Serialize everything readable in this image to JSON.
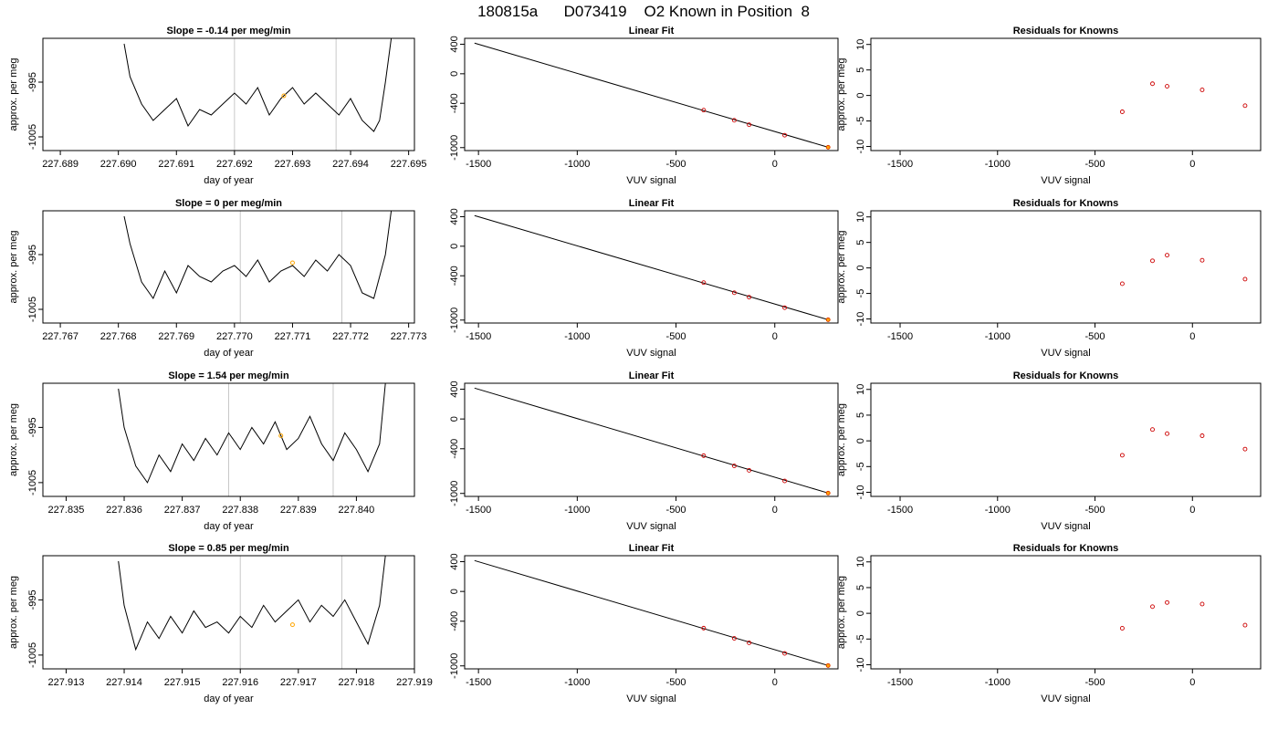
{
  "title": "180815a      D073419    O2 Known in Position  8",
  "colors": {
    "line": "#000000",
    "gridline": "#c8c8c8",
    "highlight": "#ffa500",
    "residual": "#cd0000",
    "fit_points": "#cd0000"
  },
  "chart_data": [
    {
      "type": "line",
      "row": 0,
      "col": 0,
      "title": "Slope =  -0.14  per meg/min",
      "xlabel": "day of year",
      "ylabel": "approx. per meg",
      "xlim": [
        227.6887,
        227.6951
      ],
      "xticks": [
        227.689,
        227.69,
        227.691,
        227.692,
        227.693,
        227.694,
        227.695
      ],
      "xtick_labels": [
        "227.689",
        "227.690",
        "227.691",
        "227.692",
        "227.693",
        "227.694",
        "227.695"
      ],
      "ylim": [
        -1007.5,
        -987
      ],
      "yticks": [
        -995,
        -1005
      ],
      "ytick_labels": [
        "-995",
        "-1005"
      ],
      "vlines": [
        227.692,
        227.69375
      ],
      "series": [
        {
          "x": [
            227.6901,
            227.6902,
            227.6904,
            227.6906,
            227.6908,
            227.691,
            227.6912,
            227.6914,
            227.6916,
            227.6918,
            227.692,
            227.6922,
            227.6924,
            227.6926,
            227.6928,
            227.693,
            227.6932,
            227.6934,
            227.6936,
            227.6938,
            227.694,
            227.6942,
            227.6944,
            227.6945,
            227.6946,
            227.6947
          ],
          "y": [
            -988,
            -994,
            -999,
            -1002,
            -1000,
            -998,
            -1003,
            -1000,
            -1001,
            -999,
            -997,
            -999,
            -996,
            -1001,
            -998,
            -996,
            -999,
            -997,
            -999,
            -1001,
            -998,
            -1002,
            -1004,
            -1002,
            -995,
            -987
          ]
        }
      ],
      "highlight": {
        "x": 227.69285,
        "y": -997.5
      }
    },
    {
      "type": "scatter",
      "row": 0,
      "col": 1,
      "title": "Linear Fit",
      "xlabel": "VUV signal",
      "ylabel": "",
      "xlim": [
        -1570,
        320
      ],
      "xticks": [
        -1500,
        -1000,
        -500,
        0
      ],
      "xtick_labels": [
        "-1500",
        "-1000",
        "-500",
        "0"
      ],
      "ylim": [
        -1040,
        480
      ],
      "yticks": [
        400,
        0,
        -400,
        -1000
      ],
      "ytick_labels": [
        "400",
        "0",
        "-400",
        "-1000"
      ],
      "fit_line": {
        "x": [
          -1520,
          270
        ],
        "y": [
          415,
          -995
        ]
      },
      "x": [
        -360,
        -205,
        -130,
        50
      ],
      "y": [
        -493,
        -630,
        -690,
        -832
      ],
      "highlight": {
        "x": 270,
        "y": -995
      }
    },
    {
      "type": "scatter",
      "row": 0,
      "col": 2,
      "title": "Residuals for Knowns",
      "xlabel": "VUV signal",
      "ylabel": "approx. per meg",
      "xlim": [
        -1650,
        350
      ],
      "xticks": [
        -1500,
        -1000,
        -500,
        0
      ],
      "xtick_labels": [
        "-1500",
        "-1000",
        "-500",
        "0"
      ],
      "ylim": [
        -10.8,
        11.2
      ],
      "yticks": [
        10,
        5,
        0,
        -5,
        -10
      ],
      "ytick_labels": [
        "10",
        "5",
        "0",
        "-5",
        "-10"
      ],
      "x": [
        -360,
        -205,
        -130,
        50,
        270
      ],
      "y": [
        -3.2,
        2.3,
        1.8,
        1.1,
        -2.0
      ]
    },
    {
      "type": "line",
      "row": 1,
      "col": 0,
      "title": "Slope =  0  per meg/min",
      "xlabel": "day of year",
      "ylabel": "approx. per meg",
      "xlim": [
        227.7667,
        227.7731
      ],
      "xticks": [
        227.767,
        227.768,
        227.769,
        227.77,
        227.771,
        227.772,
        227.773
      ],
      "xtick_labels": [
        "227.767",
        "227.768",
        "227.769",
        "227.770",
        "227.771",
        "227.772",
        "227.773"
      ],
      "ylim": [
        -1007.5,
        -987
      ],
      "yticks": [
        -995,
        -1005
      ],
      "ytick_labels": [
        "-995",
        "-1005"
      ],
      "vlines": [
        227.7701,
        227.77185
      ],
      "series": [
        {
          "x": [
            227.7681,
            227.7682,
            227.7684,
            227.7686,
            227.7688,
            227.769,
            227.7692,
            227.7694,
            227.7696,
            227.7698,
            227.77,
            227.7702,
            227.7704,
            227.7706,
            227.7708,
            227.771,
            227.7712,
            227.7714,
            227.7716,
            227.7718,
            227.772,
            227.7722,
            227.7724,
            227.7726,
            227.7727
          ],
          "y": [
            -988,
            -993,
            -1000,
            -1003,
            -998,
            -1002,
            -997,
            -999,
            -1000,
            -998,
            -997,
            -999,
            -996,
            -1000,
            -998,
            -997,
            -999,
            -996,
            -998,
            -995,
            -997,
            -1002,
            -1003,
            -995,
            -987
          ]
        }
      ],
      "highlight": {
        "x": 227.771,
        "y": -996.5
      }
    },
    {
      "type": "scatter",
      "row": 1,
      "col": 1,
      "title": "Linear Fit",
      "xlabel": "VUV signal",
      "ylabel": "",
      "xlim": [
        -1570,
        320
      ],
      "xticks": [
        -1500,
        -1000,
        -500,
        0
      ],
      "xtick_labels": [
        "-1500",
        "-1000",
        "-500",
        "0"
      ],
      "ylim": [
        -1040,
        480
      ],
      "yticks": [
        400,
        0,
        -400,
        -1000
      ],
      "ytick_labels": [
        "400",
        "0",
        "-400",
        "-1000"
      ],
      "fit_line": {
        "x": [
          -1520,
          270
        ],
        "y": [
          415,
          -995
        ]
      },
      "x": [
        -360,
        -205,
        -130,
        50
      ],
      "y": [
        -493,
        -630,
        -690,
        -832
      ],
      "highlight": {
        "x": 270,
        "y": -995
      }
    },
    {
      "type": "scatter",
      "row": 1,
      "col": 2,
      "title": "Residuals for Knowns",
      "xlabel": "VUV signal",
      "ylabel": "approx. per meg",
      "xlim": [
        -1650,
        350
      ],
      "xticks": [
        -1500,
        -1000,
        -500,
        0
      ],
      "xtick_labels": [
        "-1500",
        "-1000",
        "-500",
        "0"
      ],
      "ylim": [
        -10.8,
        11.2
      ],
      "yticks": [
        10,
        5,
        0,
        -5,
        -10
      ],
      "ytick_labels": [
        "10",
        "5",
        "0",
        "-5",
        "-10"
      ],
      "x": [
        -360,
        -205,
        -130,
        50,
        270
      ],
      "y": [
        -3.1,
        1.4,
        2.5,
        1.5,
        -2.2
      ]
    },
    {
      "type": "line",
      "row": 2,
      "col": 0,
      "title": "Slope =  1.54  per meg/min",
      "xlabel": "day of year",
      "ylabel": "approx. per meg",
      "xlim": [
        227.8346,
        227.841
      ],
      "xticks": [
        227.835,
        227.836,
        227.837,
        227.838,
        227.839,
        227.84
      ],
      "xtick_labels": [
        "227.835",
        "227.836",
        "227.837",
        "227.838",
        "227.839",
        "227.840"
      ],
      "ylim": [
        -1007.5,
        -987
      ],
      "yticks": [
        -995,
        -1005
      ],
      "ytick_labels": [
        "-995",
        "-1005"
      ],
      "vlines": [
        227.8378,
        227.8396
      ],
      "series": [
        {
          "x": [
            227.8359,
            227.836,
            227.8362,
            227.8364,
            227.8366,
            227.8368,
            227.837,
            227.8372,
            227.8374,
            227.8376,
            227.8378,
            227.838,
            227.8382,
            227.8384,
            227.8386,
            227.8388,
            227.839,
            227.8392,
            227.8394,
            227.8396,
            227.8398,
            227.84,
            227.8402,
            227.8404,
            227.8405
          ],
          "y": [
            -988,
            -995,
            -1002,
            -1005,
            -1000,
            -1003,
            -998,
            -1001,
            -997,
            -1000,
            -996,
            -999,
            -995,
            -998,
            -994,
            -999,
            -997,
            -993,
            -998,
            -1001,
            -996,
            -999,
            -1003,
            -998,
            -987
          ]
        }
      ],
      "highlight": {
        "x": 227.8387,
        "y": -996.5
      }
    },
    {
      "type": "scatter",
      "row": 2,
      "col": 1,
      "title": "Linear Fit",
      "xlabel": "VUV signal",
      "ylabel": "",
      "xlim": [
        -1570,
        320
      ],
      "xticks": [
        -1500,
        -1000,
        -500,
        0
      ],
      "xtick_labels": [
        "-1500",
        "-1000",
        "-500",
        "0"
      ],
      "ylim": [
        -1040,
        480
      ],
      "yticks": [
        400,
        0,
        -400,
        -1000
      ],
      "ytick_labels": [
        "400",
        "0",
        "-400",
        "-1000"
      ],
      "fit_line": {
        "x": [
          -1520,
          270
        ],
        "y": [
          415,
          -995
        ]
      },
      "x": [
        -360,
        -205,
        -130,
        50
      ],
      "y": [
        -493,
        -630,
        -690,
        -832
      ],
      "highlight": {
        "x": 270,
        "y": -995
      }
    },
    {
      "type": "scatter",
      "row": 2,
      "col": 2,
      "title": "Residuals for Knowns",
      "xlabel": "VUV signal",
      "ylabel": "approx. per meg",
      "xlim": [
        -1650,
        350
      ],
      "xticks": [
        -1500,
        -1000,
        -500,
        0
      ],
      "xtick_labels": [
        "-1500",
        "-1000",
        "-500",
        "0"
      ],
      "ylim": [
        -10.8,
        11.2
      ],
      "yticks": [
        10,
        5,
        0,
        -5,
        -10
      ],
      "ytick_labels": [
        "10",
        "5",
        "0",
        "-5",
        "-10"
      ],
      "x": [
        -360,
        -205,
        -130,
        50,
        270
      ],
      "y": [
        -2.8,
        2.2,
        1.4,
        1.0,
        -1.6
      ]
    },
    {
      "type": "line",
      "row": 3,
      "col": 0,
      "title": "Slope =  0.85  per meg/min",
      "xlabel": "day of year",
      "ylabel": "approx. per meg",
      "xlim": [
        227.9126,
        227.919
      ],
      "xticks": [
        227.913,
        227.914,
        227.915,
        227.916,
        227.917,
        227.918,
        227.919
      ],
      "xtick_labels": [
        "227.913",
        "227.914",
        "227.915",
        "227.916",
        "227.917",
        "227.918",
        "227.919"
      ],
      "ylim": [
        -1007.5,
        -987
      ],
      "yticks": [
        -995,
        -1005
      ],
      "ytick_labels": [
        "-995",
        "-1005"
      ],
      "vlines": [
        227.916,
        227.91775
      ],
      "series": [
        {
          "x": [
            227.9139,
            227.914,
            227.9142,
            227.9144,
            227.9146,
            227.9148,
            227.915,
            227.9152,
            227.9154,
            227.9156,
            227.9158,
            227.916,
            227.9162,
            227.9164,
            227.9166,
            227.9168,
            227.917,
            227.9172,
            227.9174,
            227.9176,
            227.9178,
            227.918,
            227.9182,
            227.9184,
            227.9185
          ],
          "y": [
            -988,
            -996,
            -1004,
            -999,
            -1002,
            -998,
            -1001,
            -997,
            -1000,
            -999,
            -1001,
            -998,
            -1000,
            -996,
            -999,
            -997,
            -995,
            -999,
            -996,
            -998,
            -995,
            -999,
            -1003,
            -996,
            -987
          ]
        }
      ],
      "highlight": {
        "x": 227.9169,
        "y": -999.5
      }
    },
    {
      "type": "scatter",
      "row": 3,
      "col": 1,
      "title": "Linear Fit",
      "xlabel": "VUV signal",
      "ylabel": "",
      "xlim": [
        -1570,
        320
      ],
      "xticks": [
        -1500,
        -1000,
        -500,
        0
      ],
      "xtick_labels": [
        "-1500",
        "-1000",
        "-500",
        "0"
      ],
      "ylim": [
        -1040,
        480
      ],
      "yticks": [
        400,
        0,
        -400,
        -1000
      ],
      "ytick_labels": [
        "400",
        "0",
        "-400",
        "-1000"
      ],
      "fit_line": {
        "x": [
          -1520,
          270
        ],
        "y": [
          415,
          -995
        ]
      },
      "x": [
        -360,
        -205,
        -130,
        50
      ],
      "y": [
        -493,
        -630,
        -690,
        -832
      ],
      "highlight": {
        "x": 270,
        "y": -995
      }
    },
    {
      "type": "scatter",
      "row": 3,
      "col": 2,
      "title": "Residuals for Knowns",
      "xlabel": "VUV signal",
      "ylabel": "approx. per meg",
      "xlim": [
        -1650,
        350
      ],
      "xticks": [
        -1500,
        -1000,
        -500,
        0
      ],
      "xtick_labels": [
        "-1500",
        "-1000",
        "-500",
        "0"
      ],
      "ylim": [
        -10.8,
        11.2
      ],
      "yticks": [
        10,
        5,
        0,
        -5,
        -10
      ],
      "ytick_labels": [
        "10",
        "5",
        "0",
        "-5",
        "-10"
      ],
      "x": [
        -360,
        -205,
        -130,
        50,
        270
      ],
      "y": [
        -2.9,
        1.3,
        2.1,
        1.8,
        -2.3
      ]
    }
  ]
}
